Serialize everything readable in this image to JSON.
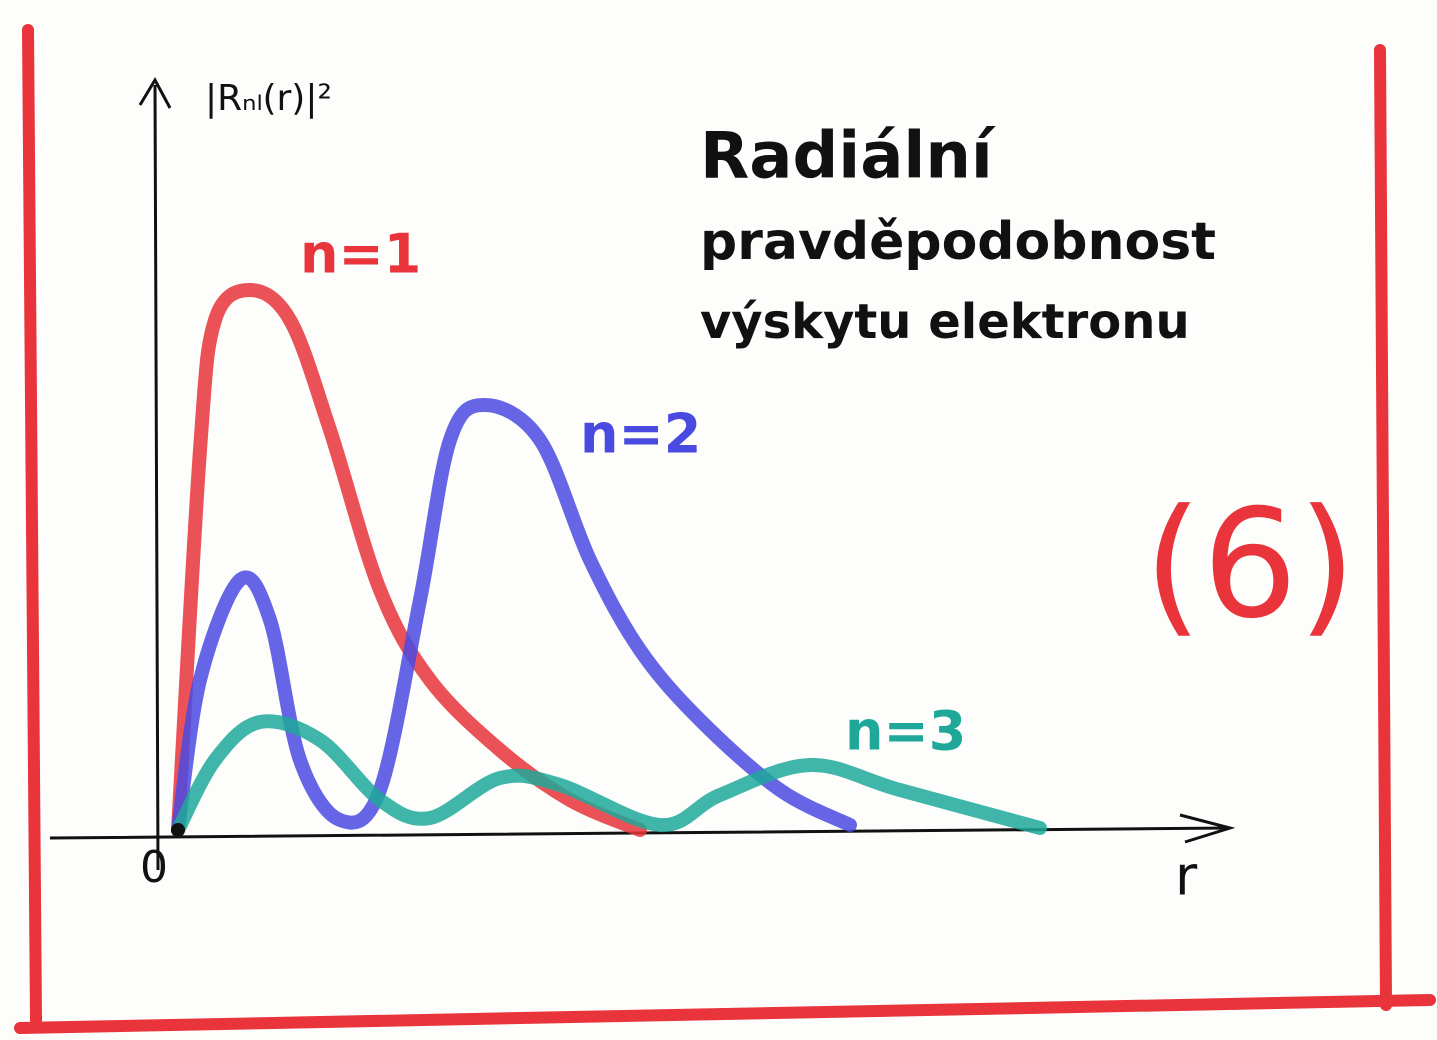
{
  "chart_data": {
    "type": "line",
    "title": [
      "Radiální",
      "pravděpodobnost",
      "výskytu elektronu"
    ],
    "y_label": "|Rₙₗ(r)|²",
    "x_label": "r",
    "origin_label": "0",
    "figure_label": "(6)",
    "xlim": [
      0,
      10.5
    ],
    "ylim": [
      0,
      7.5
    ],
    "series": [
      {
        "name": "n=1",
        "color": "#e8343a",
        "x": [
          0,
          0.22,
          0.37,
          0.72,
          1.12,
          1.52,
          2.02,
          2.52,
          3.22,
          3.92,
          4.62
        ],
        "values": [
          0,
          3.8,
          5.1,
          5.4,
          5.1,
          4.0,
          2.4,
          1.5,
          0.8,
          0.3,
          0
        ]
      },
      {
        "name": "n=2",
        "color": "#4a4ae0",
        "x": [
          0,
          0.22,
          0.62,
          0.92,
          1.22,
          1.62,
          2.02,
          2.42,
          2.72,
          3.07,
          3.62,
          4.12,
          4.62,
          5.22,
          6.02,
          6.72
        ],
        "values": [
          0,
          1.5,
          2.5,
          2.1,
          0.7,
          0.1,
          0.4,
          2.3,
          3.9,
          4.25,
          3.9,
          2.7,
          1.8,
          1.1,
          0.4,
          0.05
        ]
      },
      {
        "name": "n=3",
        "color": "#1fa89a",
        "x": [
          0,
          0.37,
          0.82,
          1.42,
          2.02,
          2.52,
          3.22,
          3.82,
          4.82,
          5.42,
          6.32,
          7.22,
          8.62
        ],
        "values": [
          0,
          0.7,
          1.08,
          0.9,
          0.3,
          0.12,
          0.52,
          0.45,
          0.05,
          0.35,
          0.65,
          0.4,
          0.02
        ]
      }
    ]
  }
}
